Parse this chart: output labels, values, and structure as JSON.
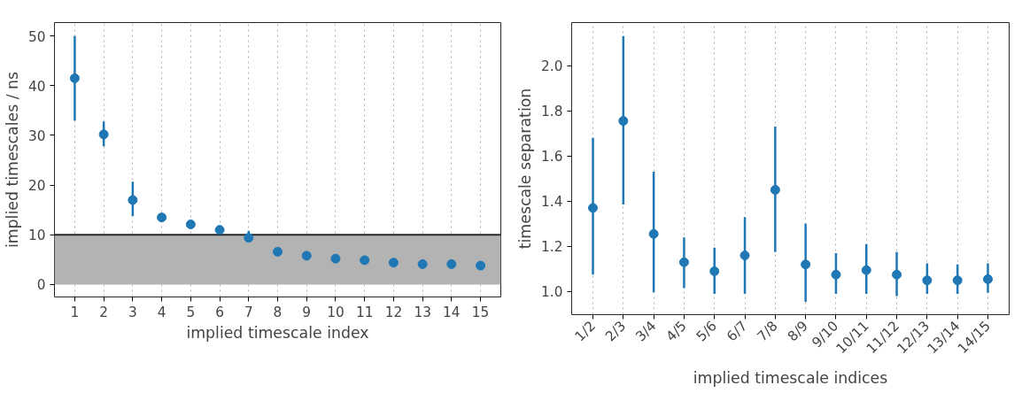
{
  "chart_data": [
    {
      "type": "scatter",
      "xlabel": "implied timescale index",
      "ylabel": "implied timescales / ns",
      "x": [
        1,
        2,
        3,
        4,
        5,
        6,
        7,
        8,
        9,
        10,
        11,
        12,
        13,
        14,
        15
      ],
      "xlim": [
        0.3,
        15.7
      ],
      "xticks": [
        1,
        2,
        3,
        4,
        5,
        6,
        7,
        8,
        9,
        10,
        11,
        12,
        13,
        14,
        15
      ],
      "series": [
        {
          "color": "#1f77b4",
          "values": [
            41.5,
            30.2,
            17,
            13.5,
            12.1,
            11,
            9.4,
            6.6,
            5.8,
            5.2,
            4.9,
            4.4,
            4.1,
            4.1,
            3.8
          ],
          "errors": [
            [
              33,
              50
            ],
            [
              27.8,
              32.8
            ],
            [
              13.8,
              20.7
            ],
            [
              12.8,
              14.3
            ],
            null,
            null,
            [
              9,
              10.8
            ],
            null,
            null,
            null,
            null,
            null,
            null,
            null,
            null
          ]
        }
      ],
      "ylim": [
        -2.5,
        52.7
      ],
      "yticks": [
        0,
        10,
        20,
        30,
        40,
        50
      ],
      "grid": "x",
      "marker": "circle",
      "bands": [
        {
          "axis": "y",
          "from": 0,
          "to": 10,
          "color": "#b3b3b3"
        }
      ],
      "ref_lines": [
        {
          "axis": "y",
          "value": 10,
          "color": "#262626"
        }
      ]
    },
    {
      "type": "scatter",
      "xlabel": "implied timescale indices",
      "ylabel": "timescale separation",
      "categories": [
        "1/2",
        "2/3",
        "3/4",
        "4/5",
        "5/6",
        "6/7",
        "7/8",
        "8/9",
        "9/10",
        "10/11",
        "11/12",
        "12/13",
        "13/14",
        "14/15"
      ],
      "series": [
        {
          "color": "#1f77b4",
          "values": [
            1.37,
            1.755,
            1.255,
            1.13,
            1.09,
            1.16,
            1.45,
            1.12,
            1.075,
            1.095,
            1.075,
            1.05,
            1.05,
            1.055
          ],
          "errors": [
            [
              1.075,
              1.68
            ],
            [
              1.385,
              2.13
            ],
            [
              0.997,
              1.53
            ],
            [
              1.015,
              1.24
            ],
            [
              0.99,
              1.195
            ],
            [
              0.99,
              1.33
            ],
            [
              1.175,
              1.73
            ],
            [
              0.955,
              1.3
            ],
            [
              0.99,
              1.17
            ],
            [
              0.99,
              1.21
            ],
            [
              0.98,
              1.175
            ],
            [
              0.99,
              1.125
            ],
            [
              0.99,
              1.12
            ],
            [
              0.995,
              1.125
            ]
          ]
        }
      ],
      "ylim": [
        0.898,
        2.19
      ],
      "yticks": [
        {
          "value": 1.0,
          "label": "1.0"
        },
        {
          "value": 1.2,
          "label": "1.2"
        },
        {
          "value": 1.4,
          "label": "1.4"
        },
        {
          "value": 1.6,
          "label": "1.6"
        },
        {
          "value": 1.8,
          "label": "1.8"
        },
        {
          "value": 2.0,
          "label": "2.0"
        }
      ],
      "grid": "x",
      "marker": "circle"
    }
  ]
}
